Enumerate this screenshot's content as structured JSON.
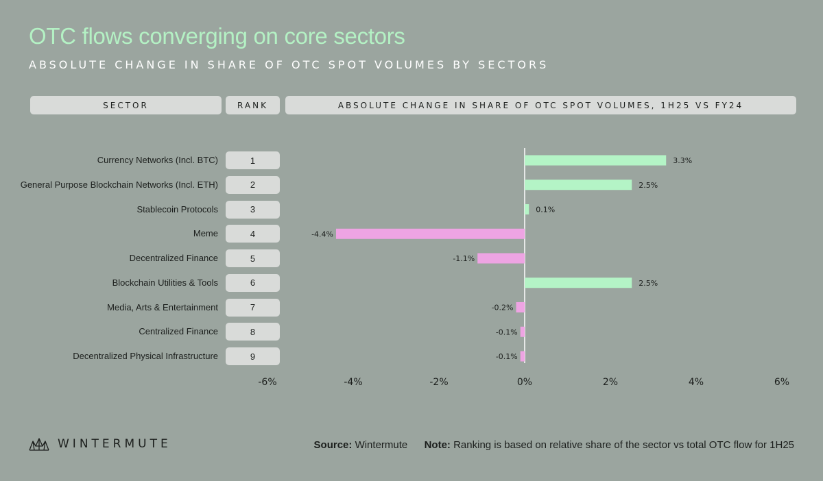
{
  "title": "OTC flows converging on core sectors",
  "subtitle": "ABSOLUTE CHANGE IN SHARE OF OTC SPOT VOLUMES BY SECTORS",
  "table_headers": {
    "sector": "SECTOR",
    "rank": "RANK",
    "change": "ABSOLUTE CHANGE IN SHARE OF OTC SPOT VOLUMES, 1H25 VS FY24"
  },
  "chart_data": {
    "type": "bar",
    "orientation": "horizontal",
    "categories": [
      "Currency Networks (Incl. BTC)",
      "General Purpose Blockchain Networks (Incl. ETH)",
      "Stablecoin Protocols",
      "Meme",
      "Decentralized Finance",
      "Blockchain Utilities & Tools",
      "Media, Arts & Entertainment",
      "Centralized Finance",
      "Decentralized Physical Infrastructure"
    ],
    "ranks": [
      "1",
      "2",
      "3",
      "4",
      "5",
      "6",
      "7",
      "8",
      "9"
    ],
    "values": [
      3.3,
      2.5,
      0.1,
      -4.4,
      -1.1,
      2.5,
      -0.2,
      -0.1,
      -0.1
    ],
    "value_labels": [
      "3.3%",
      "2.5%",
      "0.1%",
      "-4.4%",
      "-1.1%",
      "2.5%",
      "-0.2%",
      "-0.1%",
      "-0.1%"
    ],
    "xlim": [
      -6,
      6
    ],
    "x_ticks": [
      -6,
      -4,
      -2,
      0,
      2,
      4,
      6
    ],
    "x_tick_labels": [
      "-6%",
      "-4%",
      "-2%",
      "0%",
      "2%",
      "4%",
      "6%"
    ],
    "colors": {
      "positive": "#b4f4c6",
      "negative": "#eea4e3",
      "zero_line": "#ffffff"
    },
    "grid": false
  },
  "footer": {
    "brand": "WINTERMUTE",
    "source_label": "Source:",
    "source_value": "Wintermute",
    "note_label": "Note:",
    "note_value": "Ranking is based on relative share of the sector vs total OTC flow for 1H25"
  }
}
